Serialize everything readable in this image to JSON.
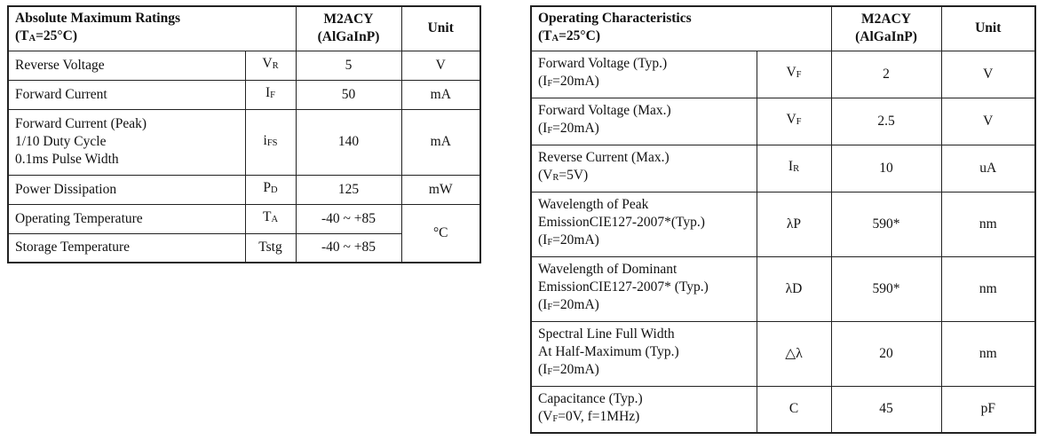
{
  "left_table": {
    "header": {
      "title": "Absolute Maximum Ratings",
      "condition_prefix": "(T",
      "condition_sub": "A",
      "condition_suffix": "=25°C)",
      "part_line1": "M2ACY",
      "part_line2": "(AlGaInP)",
      "unit": "Unit"
    },
    "rows": [
      {
        "param": [
          "Reverse Voltage"
        ],
        "sym_main": "V",
        "sym_sub": "R",
        "value": "5",
        "unit": "V"
      },
      {
        "param": [
          "Forward Current"
        ],
        "sym_main": "I",
        "sym_sub": "F",
        "value": "50",
        "unit": "mA"
      },
      {
        "param": [
          "Forward Current (Peak)",
          "1/10 Duty Cycle",
          "0.1ms Pulse Width"
        ],
        "sym_main": "i",
        "sym_sub": "FS",
        "value": "140",
        "unit": "mA"
      },
      {
        "param": [
          "Power Dissipation"
        ],
        "sym_main": "P",
        "sym_sub": "D",
        "value": "125",
        "unit": "mW"
      },
      {
        "param": [
          "Operating Temperature"
        ],
        "sym_main": "T",
        "sym_sub": "A",
        "value": "-40 ~ +85",
        "unit": "°C"
      },
      {
        "param": [
          "Storage Temperature"
        ],
        "sym_main": "Tstg",
        "sym_sub": "",
        "value": "-40 ~ +85"
      }
    ]
  },
  "right_table": {
    "header": {
      "title": "Operating Characteristics",
      "condition_prefix": "(T",
      "condition_sub": "A",
      "condition_suffix": "=25°C)",
      "part_line1": "M2ACY",
      "part_line2": "(AlGaInP)",
      "unit": "Unit"
    },
    "rows": [
      {
        "param": [
          "Forward Voltage (Typ.)"
        ],
        "cond_prefix": "(I",
        "cond_sub": "F",
        "cond_suffix": "=20mA)",
        "sym_main": "V",
        "sym_sub": "F",
        "value": "2",
        "unit": "V"
      },
      {
        "param": [
          "Forward Voltage (Max.)"
        ],
        "cond_prefix": "(I",
        "cond_sub": "F",
        "cond_suffix": "=20mA)",
        "sym_main": "V",
        "sym_sub": "F",
        "value": "2.5",
        "unit": "V"
      },
      {
        "param": [
          "Reverse Current (Max.)"
        ],
        "cond_prefix": "(V",
        "cond_sub": "R",
        "cond_suffix": "=5V)",
        "sym_main": "I",
        "sym_sub": "R",
        "value": "10",
        "unit": "uA"
      },
      {
        "param": [
          "Wavelength of Peak",
          "EmissionCIE127-2007*(Typ.)"
        ],
        "cond_prefix": "(I",
        "cond_sub": "F",
        "cond_suffix": "=20mA)",
        "sym_main": "λP",
        "sym_sub": "",
        "value": "590*",
        "unit": "nm"
      },
      {
        "param": [
          "Wavelength of Dominant",
          "EmissionCIE127-2007* (Typ.)"
        ],
        "cond_prefix": "(I",
        "cond_sub": "F",
        "cond_suffix": "=20mA)",
        "sym_main": "λD",
        "sym_sub": "",
        "value": "590*",
        "unit": "nm"
      },
      {
        "param": [
          "Spectral Line Full Width",
          "At Half-Maximum (Typ.)"
        ],
        "cond_prefix": "(I",
        "cond_sub": "F",
        "cond_suffix": "=20mA)",
        "sym_main": "△λ",
        "sym_sub": "",
        "value": "20",
        "unit": "nm"
      },
      {
        "param": [
          "Capacitance (Typ.)"
        ],
        "cond_prefix": "(V",
        "cond_sub": "F",
        "cond_suffix": "=0V, f=1MHz)",
        "sym_main": "C",
        "sym_sub": "",
        "value": "45",
        "unit": "pF"
      }
    ]
  }
}
